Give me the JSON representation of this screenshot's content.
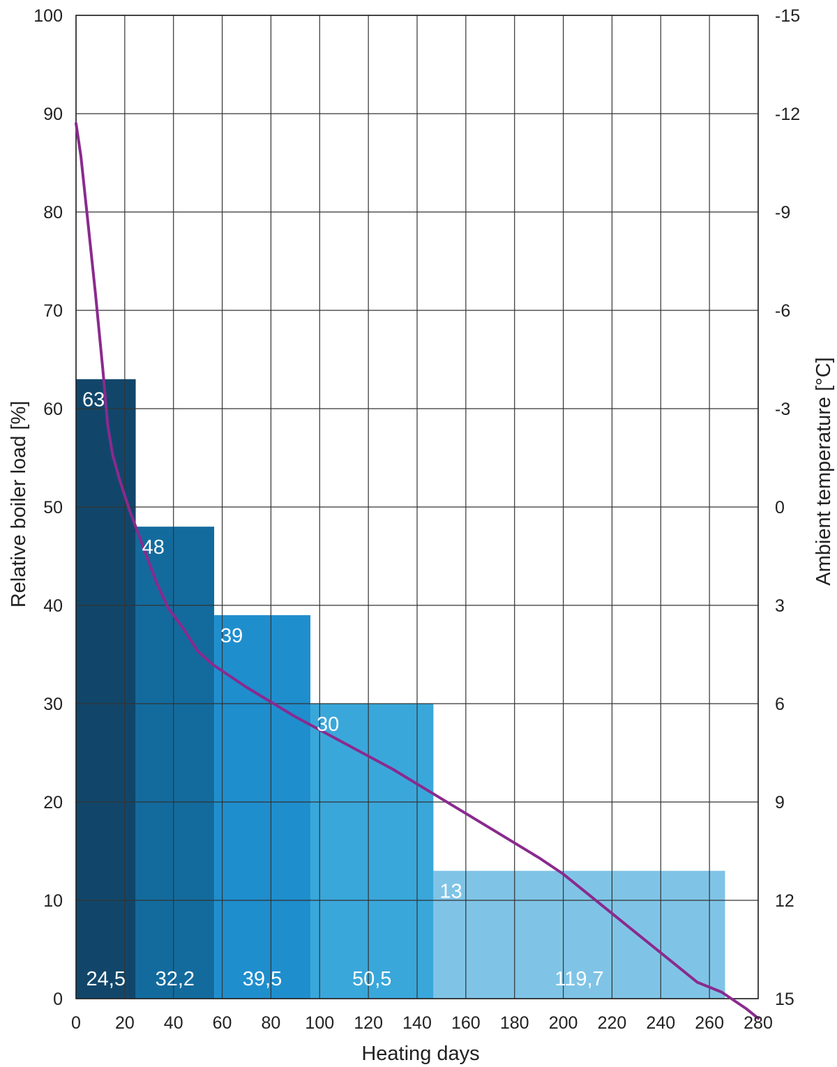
{
  "chart_data": {
    "type": "bar",
    "xlabel": "Heating days",
    "ylabel": "Relative boiler load [%]",
    "y2label": "Ambient temperature [°C]",
    "xlim": [
      0,
      280
    ],
    "ylim": [
      0,
      100
    ],
    "y2lim": [
      15,
      -15
    ],
    "grid": true,
    "x_ticks": [
      "0",
      "20",
      "40",
      "60",
      "80",
      "100",
      "120",
      "140",
      "160",
      "180",
      "200",
      "220",
      "240",
      "260",
      "280"
    ],
    "y_ticks": [
      "0",
      "10",
      "20",
      "30",
      "40",
      "50",
      "60",
      "70",
      "80",
      "90",
      "100"
    ],
    "y2_ticks": [
      "15",
      "12",
      "9",
      "6",
      "3",
      "0",
      "-3",
      "-6",
      "-9",
      "-12",
      "-15"
    ],
    "bars": [
      {
        "x_start": 0,
        "x_end": 24.5,
        "value": 63,
        "value_label": "63",
        "width_label": "24,5",
        "color": "#11466a"
      },
      {
        "x_start": 24.5,
        "x_end": 56.7,
        "value": 48,
        "value_label": "48",
        "width_label": "32,2",
        "color": "#136b9d"
      },
      {
        "x_start": 56.7,
        "x_end": 96.2,
        "value": 39,
        "value_label": "39",
        "width_label": "39,5",
        "color": "#1f8ecd"
      },
      {
        "x_start": 96.2,
        "x_end": 146.7,
        "value": 30,
        "value_label": "30",
        "width_label": "50,5",
        "color": "#3aa7da"
      },
      {
        "x_start": 146.7,
        "x_end": 266.4,
        "value": 13,
        "value_label": "13",
        "width_label": "119,7",
        "color": "#7fc4e6"
      }
    ],
    "line": {
      "axis": "y2",
      "color": "#8a2a8e",
      "x": [
        0,
        2,
        5,
        8,
        11,
        13,
        15,
        18,
        22,
        27,
        33,
        38,
        44,
        50,
        56,
        70,
        90,
        110,
        130,
        150,
        170,
        190,
        200,
        210,
        220,
        240,
        255,
        265,
        275,
        280
      ],
      "y": [
        -11.7,
        -10.7,
        -8.6,
        -6.5,
        -4.2,
        -2.5,
        -1.6,
        -0.8,
        0.1,
        1.1,
        2.3,
        3.1,
        3.7,
        4.4,
        4.8,
        5.5,
        6.4,
        7.2,
        8.0,
        8.9,
        9.8,
        10.7,
        11.2,
        11.8,
        12.4,
        13.6,
        14.5,
        14.8,
        15.3,
        15.6
      ]
    }
  },
  "colors": {
    "line": "#8a2a8e",
    "grid": "#333333",
    "text": "#222222"
  }
}
